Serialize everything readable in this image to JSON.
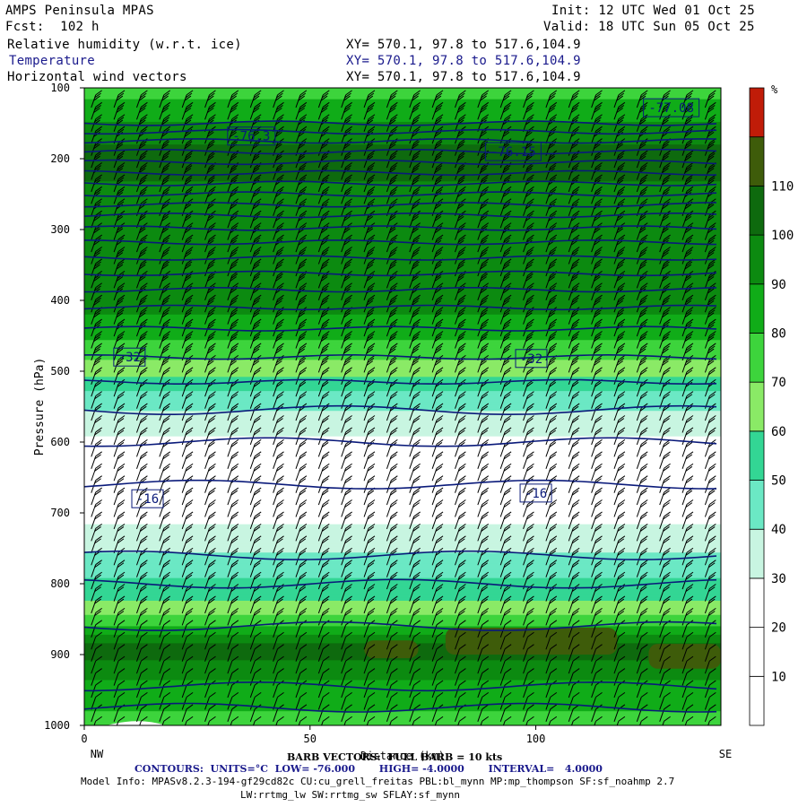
{
  "header": {
    "model": "AMPS Peninsula MPAS",
    "fcst": "Fcst:  102 h",
    "init": "Init: 12 UTC Wed 01 Oct 25",
    "valid": "Valid: 18 UTC Sun 05 Oct 25",
    "fields": [
      {
        "name": "Relative humidity (w.r.t. ice)",
        "xy": "XY= 570.1, 97.8 to 517.6,104.9"
      },
      {
        "name": "Temperature",
        "xy": "XY= 570.1, 97.8 to 517.6,104.9"
      },
      {
        "name": "Horizontal wind vectors",
        "xy": "XY= 570.1, 97.8 to 517.6,104.9"
      }
    ]
  },
  "chart_data": {
    "type": "heatmap",
    "title": "Relative humidity (w.r.t. ice)",
    "xlabel": "Distance (km)",
    "ylabel": "Pressure (hPa)",
    "x_ticks": [
      0,
      50,
      100
    ],
    "x_end_labels": {
      "left": "NW",
      "right": "SE"
    },
    "xlim": [
      0,
      141
    ],
    "y_ticks": [
      100,
      200,
      300,
      400,
      500,
      600,
      700,
      800,
      900,
      1000
    ],
    "ylim": [
      1000,
      100
    ],
    "colorbar": {
      "unit": "%",
      "levels": [
        0,
        10,
        20,
        30,
        40,
        50,
        60,
        70,
        80,
        90,
        100,
        110,
        120
      ],
      "tick_labels": [
        10,
        20,
        30,
        40,
        50,
        60,
        70,
        80,
        90,
        100,
        110
      ],
      "colors": [
        "#ffffff",
        "#ffffff",
        "#ffffff",
        "#c8f5e1",
        "#6be8c4",
        "#33d694",
        "#8aea66",
        "#3dd43c",
        "#10ac18",
        "#0c8a10",
        "#0e6a0e",
        "#3e5c0a",
        "#c01c08"
      ]
    },
    "rh_profile": [
      {
        "p": 100,
        "rh": 75
      },
      {
        "p": 120,
        "rh": 82
      },
      {
        "p": 140,
        "rh": 88
      },
      {
        "p": 160,
        "rh": 95
      },
      {
        "p": 180,
        "rh": 102
      },
      {
        "p": 210,
        "rh": 104
      },
      {
        "p": 240,
        "rh": 98
      },
      {
        "p": 280,
        "rh": 92
      },
      {
        "p": 320,
        "rh": 96
      },
      {
        "p": 360,
        "rh": 100
      },
      {
        "p": 400,
        "rh": 94
      },
      {
        "p": 440,
        "rh": 84
      },
      {
        "p": 480,
        "rh": 72
      },
      {
        "p": 510,
        "rh": 60
      },
      {
        "p": 540,
        "rh": 46
      },
      {
        "p": 570,
        "rh": 36
      },
      {
        "p": 600,
        "rh": 28
      },
      {
        "p": 650,
        "rh": 22
      },
      {
        "p": 700,
        "rh": 27
      },
      {
        "p": 740,
        "rh": 34
      },
      {
        "p": 780,
        "rh": 45
      },
      {
        "p": 820,
        "rh": 58
      },
      {
        "p": 850,
        "rh": 74
      },
      {
        "p": 870,
        "rh": 92
      },
      {
        "p": 890,
        "rh": 106
      },
      {
        "p": 910,
        "rh": 99
      },
      {
        "p": 940,
        "rh": 88
      },
      {
        "p": 970,
        "rh": 82
      },
      {
        "p": 1000,
        "rh": 78
      }
    ],
    "rh_max_patches": [
      {
        "x": [
          62,
          74
        ],
        "p": [
          880,
          905
        ],
        "rh": 112
      },
      {
        "x": [
          80,
          118
        ],
        "p": [
          862,
          900
        ],
        "rh": 114
      },
      {
        "x": [
          125,
          141
        ],
        "p": [
          885,
          920
        ],
        "rh": 112
      }
    ],
    "temperature_contours": {
      "units": "°C",
      "levels": [
        -76,
        -72,
        -68,
        -64,
        -60,
        -56,
        -52,
        -48,
        -44,
        -40,
        -36,
        -32,
        -28,
        -24,
        -20,
        -16,
        -12,
        -8,
        -4
      ],
      "approx_pressure": [
        150,
        162,
        175,
        190,
        205,
        220,
        235,
        250,
        265,
        280,
        298,
        318,
        340,
        362,
        385,
        410,
        440,
        480,
        515
      ],
      "labels": [
        {
          "text": "-76.3",
          "x": 37,
          "p": 168
        },
        {
          "text": "-76.15",
          "x": 95,
          "p": 190
        },
        {
          "text": "-77.08",
          "x": 130,
          "p": 128
        },
        {
          "text": "-32",
          "x": 10,
          "p": 480
        },
        {
          "text": "-32",
          "x": 99,
          "p": 482
        },
        {
          "text": "-16",
          "x": 14,
          "p": 680
        },
        {
          "text": "-16",
          "x": 100,
          "p": 672
        }
      ]
    },
    "wind_barbs": {
      "speed_full_barb_kts": 10,
      "direction": "westerly"
    },
    "footer": {
      "barb": "BARB VECTORS:  FULL BARB = 10 kts",
      "contours": "CONTOURS:  UNITS=°C  LOW= -76.000       HIGH= -4.0000       INTERVAL=   4.0000",
      "model_info": "Model Info: MPASv8.2.3-194-gf29cd82c CU:cu_grell_freitas PBL:bl_mynn MP:mp_thompson SF:sf_noahmp 2.7",
      "model_info2": "LW:rrtmg_lw SW:rrtmg_sw SFLAY:sf_mynn"
    }
  }
}
